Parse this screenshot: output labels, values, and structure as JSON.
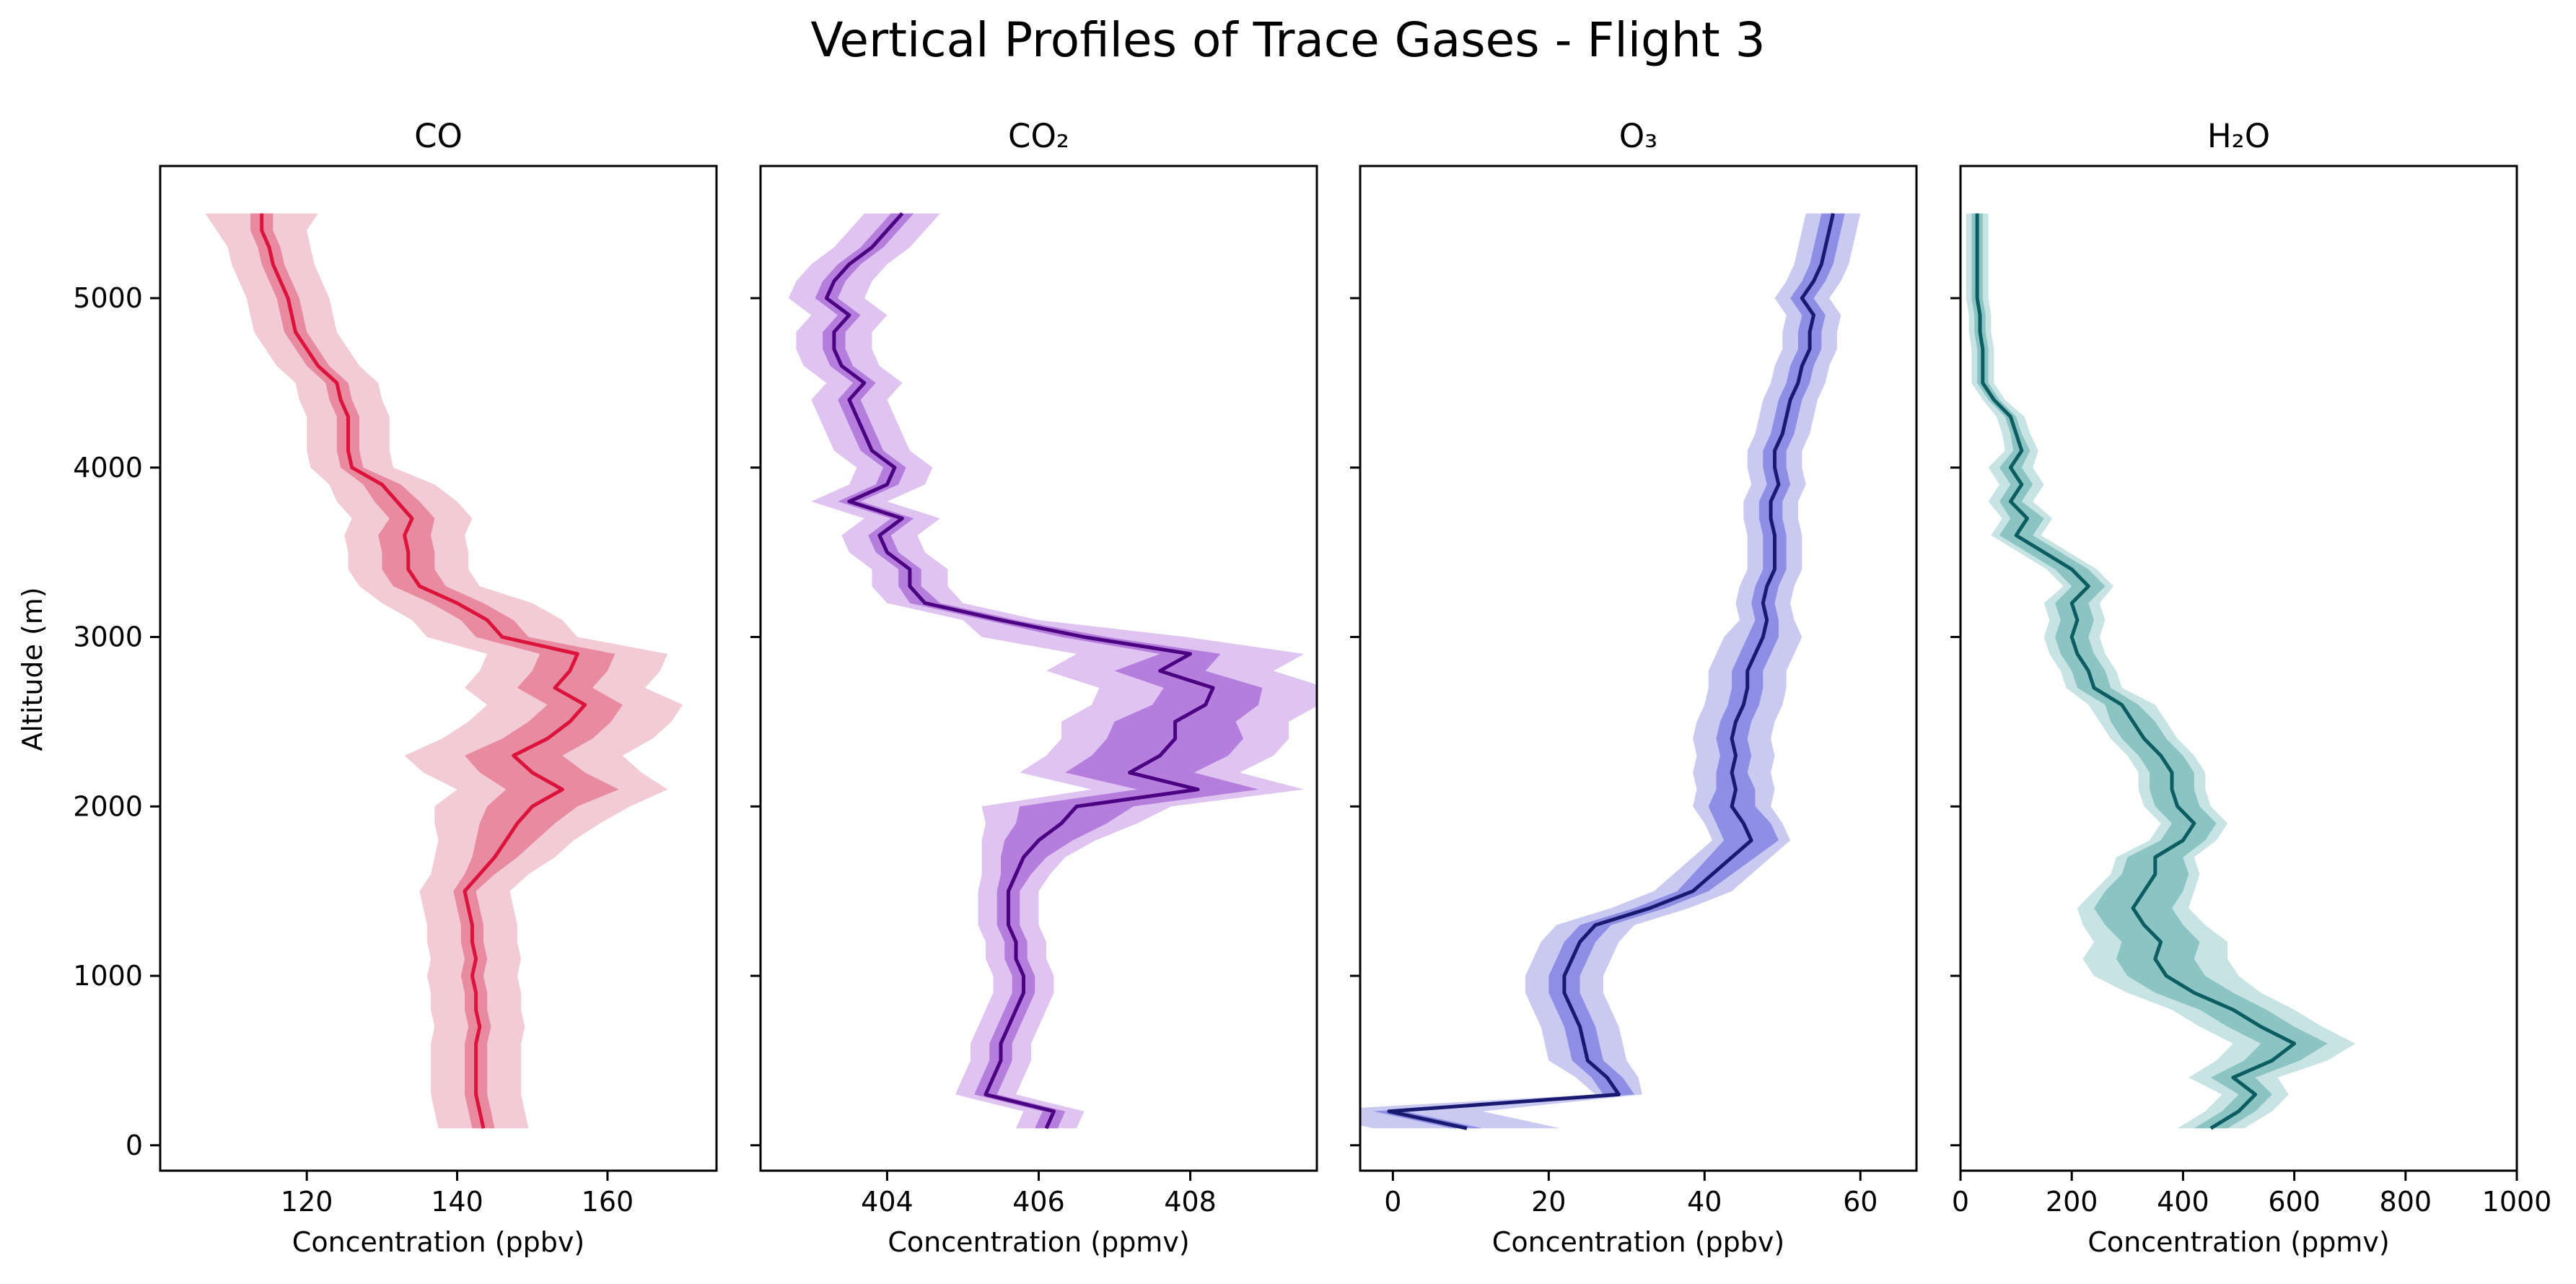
{
  "figure": {
    "title": "Vertical Profiles of Trace Gases - Flight 3",
    "ylabel": "Altitude (m)"
  },
  "chart_data": [
    {
      "type": "line",
      "title": "CO",
      "xlabel": "Concentration (ppbv)",
      "ylabel": "Altitude (m)",
      "xlim": [
        100.5,
        174.5
      ],
      "ylim": [
        -150,
        5780
      ],
      "xticks": [
        120,
        140,
        160
      ],
      "yticks": [
        0,
        1000,
        2000,
        3000,
        4000,
        5000
      ],
      "grid": false,
      "colors": {
        "line": "#dc143c",
        "band_inner": "#e88aa0",
        "band_outer": "#f3cbd6"
      },
      "altitude": [
        100,
        200,
        300,
        400,
        500,
        600,
        700,
        800,
        900,
        1000,
        1100,
        1200,
        1300,
        1400,
        1500,
        1600,
        1700,
        1800,
        1900,
        2000,
        2100,
        2200,
        2300,
        2400,
        2500,
        2600,
        2700,
        2800,
        2900,
        3000,
        3100,
        3200,
        3300,
        3400,
        3500,
        3600,
        3700,
        3800,
        3900,
        4000,
        4100,
        4200,
        4300,
        4400,
        4500,
        4600,
        4700,
        4800,
        4900,
        5000,
        5100,
        5200,
        5300,
        5400,
        5500
      ],
      "mean": [
        143.5,
        143,
        142.5,
        142.5,
        142.5,
        142.5,
        143,
        142.5,
        142.5,
        142,
        142.5,
        142,
        142,
        141.5,
        141,
        143,
        145,
        146.5,
        148,
        150,
        154,
        150,
        147.5,
        152,
        155,
        157,
        153,
        155,
        156,
        146,
        144,
        140,
        135,
        133.5,
        133.5,
        133,
        134,
        132,
        130,
        126,
        125.5,
        125.5,
        125.5,
        124.5,
        124,
        121.5,
        120,
        118.5,
        118,
        117.5,
        116.5,
        115.5,
        115,
        114,
        114
      ],
      "std1": [
        1.5,
        1.5,
        1.5,
        1.5,
        1.5,
        1.5,
        1.5,
        1.5,
        1.5,
        1.5,
        1.5,
        1.5,
        1.5,
        1.5,
        1.5,
        2,
        3,
        4,
        5,
        6,
        7.5,
        7,
        6.5,
        6,
        5.5,
        5,
        5,
        5,
        5,
        3.5,
        3.5,
        3.5,
        3.5,
        3.5,
        3.5,
        3.5,
        3,
        3,
        2.5,
        1.5,
        1.5,
        1.5,
        1.5,
        1.5,
        1.5,
        1.5,
        1.5,
        1.5,
        1.5,
        1.5,
        1.5,
        1.5,
        1.5,
        1.5,
        1.5
      ],
      "std2": [
        6,
        6,
        6,
        6,
        6,
        6,
        6,
        6,
        6,
        6,
        6,
        6,
        6,
        6,
        6,
        6.5,
        8,
        9,
        11,
        13,
        14,
        14.5,
        14.5,
        14,
        13.5,
        13,
        12,
        12,
        12,
        10,
        10,
        10,
        8,
        8,
        8,
        8,
        8,
        8,
        7,
        5.5,
        5.5,
        5.5,
        5.5,
        5.5,
        5.5,
        5.5,
        5.5,
        5.5,
        5.5,
        5.5,
        5.5,
        5.5,
        5.5,
        6,
        7.5
      ]
    },
    {
      "type": "line",
      "title": "CO₂",
      "xlabel": "Concentration (ppmv)",
      "ylabel": "",
      "xlim": [
        402.33,
        409.67
      ],
      "ylim": [
        -150,
        5780
      ],
      "xticks": [
        404,
        406,
        408
      ],
      "yticks": [
        0,
        1000,
        2000,
        3000,
        4000,
        5000
      ],
      "grid": false,
      "colors": {
        "line": "#4b0082",
        "band_inner": "#b57edc",
        "band_outer": "#dfc3f1"
      },
      "altitude": [
        100,
        200,
        300,
        400,
        500,
        600,
        700,
        800,
        900,
        1000,
        1100,
        1200,
        1300,
        1400,
        1500,
        1600,
        1700,
        1800,
        1900,
        2000,
        2100,
        2200,
        2300,
        2400,
        2500,
        2600,
        2700,
        2800,
        2900,
        3000,
        3100,
        3200,
        3300,
        3400,
        3500,
        3600,
        3700,
        3800,
        3900,
        4000,
        4100,
        4200,
        4300,
        4400,
        4500,
        4600,
        4700,
        4800,
        4900,
        5000,
        5100,
        5200,
        5300,
        5400,
        5500
      ],
      "mean": [
        406.1,
        406.2,
        405.3,
        405.4,
        405.5,
        405.5,
        405.6,
        405.7,
        405.8,
        405.8,
        405.7,
        405.7,
        405.6,
        405.6,
        405.6,
        405.7,
        405.8,
        406,
        406.3,
        406.5,
        408.1,
        407.2,
        407.6,
        407.8,
        407.8,
        408.2,
        408.3,
        407.6,
        408,
        406.6,
        405.5,
        404.5,
        404.3,
        404.3,
        404,
        403.9,
        404.2,
        403.5,
        404,
        404.1,
        403.8,
        403.7,
        403.6,
        403.5,
        403.7,
        403.4,
        403.3,
        403.3,
        403.5,
        403.2,
        403.3,
        403.5,
        403.8,
        404,
        404.2
      ],
      "std1": [
        0.15,
        0.15,
        0.15,
        0.15,
        0.15,
        0.15,
        0.15,
        0.15,
        0.15,
        0.15,
        0.15,
        0.15,
        0.15,
        0.15,
        0.15,
        0.2,
        0.3,
        0.45,
        0.6,
        0.75,
        0.8,
        0.85,
        0.9,
        0.9,
        0.8,
        0.7,
        0.65,
        0.6,
        0.4,
        0.3,
        0.2,
        0.2,
        0.15,
        0.15,
        0.15,
        0.15,
        0.15,
        0.15,
        0.15,
        0.15,
        0.15,
        0.15,
        0.15,
        0.15,
        0.15,
        0.15,
        0.15,
        0.15,
        0.15,
        0.15,
        0.15,
        0.15,
        0.15,
        0.15,
        0.15
      ],
      "std2": [
        0.4,
        0.4,
        0.4,
        0.4,
        0.4,
        0.4,
        0.4,
        0.4,
        0.4,
        0.4,
        0.4,
        0.4,
        0.4,
        0.4,
        0.4,
        0.45,
        0.55,
        0.75,
        1,
        1.25,
        1.4,
        1.45,
        1.5,
        1.5,
        1.5,
        1.5,
        1.5,
        1.5,
        1.5,
        1.35,
        0.5,
        0.5,
        0.5,
        0.5,
        0.5,
        0.5,
        0.5,
        0.5,
        0.5,
        0.5,
        0.5,
        0.5,
        0.5,
        0.5,
        0.5,
        0.5,
        0.5,
        0.5,
        0.5,
        0.5,
        0.5,
        0.5,
        0.5,
        0.5,
        0.5
      ]
    },
    {
      "type": "line",
      "title": "O₃",
      "xlabel": "Concentration (ppbv)",
      "ylabel": "",
      "xlim": [
        -4.2,
        67.2
      ],
      "ylim": [
        -150,
        5780
      ],
      "xticks": [
        0,
        20,
        40,
        60
      ],
      "yticks": [
        0,
        1000,
        2000,
        3000,
        4000,
        5000
      ],
      "grid": false,
      "colors": {
        "line": "#191970",
        "band_inner": "#8e8ee5",
        "band_outer": "#c9c9f2"
      },
      "altitude": [
        100,
        200,
        300,
        400,
        500,
        600,
        700,
        800,
        900,
        1000,
        1100,
        1200,
        1300,
        1400,
        1500,
        1600,
        1700,
        1800,
        1900,
        2000,
        2100,
        2200,
        2300,
        2400,
        2500,
        2600,
        2700,
        2800,
        2900,
        3000,
        3100,
        3200,
        3300,
        3400,
        3500,
        3600,
        3700,
        3800,
        3900,
        4000,
        4100,
        4200,
        4300,
        4400,
        4500,
        4600,
        4700,
        4800,
        4900,
        5000,
        5100,
        5200,
        5300,
        5400,
        5500
      ],
      "mean": [
        9.5,
        -0.5,
        29,
        27.5,
        25,
        24.5,
        24,
        23,
        22,
        22,
        23,
        24,
        26,
        33,
        38.5,
        41,
        43.5,
        46,
        45,
        43.5,
        44,
        43.5,
        44,
        43.5,
        44,
        45,
        45.5,
        45.5,
        46.5,
        47.5,
        48,
        47.5,
        48,
        49,
        49,
        49,
        48.5,
        48.5,
        49.5,
        49,
        49,
        50,
        50.5,
        51,
        52,
        52.5,
        53.5,
        53.5,
        54,
        52.5,
        54,
        55,
        55.5,
        56,
        56.5
      ],
      "std1": [
        2,
        2,
        2,
        2,
        2,
        2,
        2,
        2,
        2,
        2,
        2,
        2,
        2,
        2,
        2,
        2.5,
        3,
        3.5,
        3.5,
        3,
        2.5,
        2,
        2,
        2,
        2,
        2,
        2,
        2,
        2,
        2,
        1.5,
        1.5,
        1.5,
        1.5,
        1.5,
        1.5,
        1.5,
        1.5,
        1.5,
        1.5,
        1.5,
        1.5,
        1.5,
        1.5,
        1.5,
        1.5,
        1.5,
        1.5,
        1.5,
        1.5,
        1.5,
        1.5,
        1.5,
        1.5,
        1.5
      ],
      "std2": [
        12,
        12,
        3,
        4,
        5,
        5,
        5,
        5,
        5,
        5,
        5,
        5,
        5,
        5,
        5,
        5,
        5,
        5,
        5,
        5,
        5,
        5,
        5,
        5,
        5,
        5,
        5,
        5,
        5,
        5,
        3.5,
        3.5,
        3.5,
        3.5,
        3.5,
        3.5,
        3.5,
        3.5,
        3.5,
        3.5,
        3.5,
        3.5,
        3.5,
        3.5,
        3.5,
        3.5,
        3.5,
        3.5,
        3.5,
        3.5,
        3.5,
        3.5,
        3.5,
        3.5,
        3.5
      ]
    },
    {
      "type": "line",
      "title": "H₂O",
      "xlabel": "Concentration (ppmv)",
      "ylabel": "",
      "xlim": [
        0,
        1000
      ],
      "ylim": [
        -150,
        5780
      ],
      "xticks": [
        0,
        200,
        400,
        600,
        800,
        1000
      ],
      "yticks": [
        0,
        1000,
        2000,
        3000,
        4000,
        5000
      ],
      "grid": false,
      "colors": {
        "line": "#0b5d62",
        "band_inner": "#8cc4c4",
        "band_outer": "#c8e3e3"
      },
      "altitude": [
        100,
        200,
        300,
        400,
        500,
        600,
        700,
        800,
        900,
        1000,
        1100,
        1200,
        1300,
        1400,
        1500,
        1600,
        1700,
        1800,
        1900,
        2000,
        2100,
        2200,
        2300,
        2400,
        2500,
        2600,
        2700,
        2800,
        2900,
        3000,
        3100,
        3200,
        3300,
        3400,
        3500,
        3600,
        3700,
        3800,
        3900,
        4000,
        4100,
        4200,
        4300,
        4400,
        4500,
        4600,
        4700,
        4800,
        4900,
        5000,
        5100,
        5200,
        5300,
        5400,
        5500
      ],
      "mean": [
        450,
        500,
        530,
        490,
        560,
        600,
        540,
        490,
        420,
        370,
        350,
        360,
        330,
        310,
        330,
        350,
        350,
        400,
        420,
        390,
        380,
        380,
        360,
        330,
        310,
        290,
        240,
        230,
        210,
        200,
        210,
        200,
        230,
        200,
        150,
        100,
        120,
        90,
        110,
        90,
        110,
        100,
        90,
        60,
        40,
        40,
        40,
        35,
        35,
        30,
        30,
        30,
        30,
        30,
        30
      ],
      "std1": [
        30,
        30,
        30,
        40,
        50,
        60,
        60,
        60,
        70,
        70,
        70,
        70,
        70,
        70,
        70,
        60,
        50,
        40,
        40,
        40,
        40,
        40,
        40,
        40,
        40,
        30,
        30,
        30,
        30,
        30,
        30,
        30,
        30,
        30,
        30,
        30,
        30,
        20,
        20,
        20,
        15,
        10,
        10,
        10,
        10,
        10,
        10,
        10,
        10,
        10,
        10,
        10,
        10,
        10,
        10
      ],
      "std2": [
        60,
        60,
        60,
        80,
        100,
        110,
        110,
        110,
        120,
        130,
        130,
        120,
        110,
        100,
        90,
        80,
        70,
        60,
        60,
        60,
        60,
        60,
        60,
        60,
        60,
        60,
        50,
        50,
        50,
        50,
        50,
        50,
        45,
        45,
        45,
        45,
        45,
        40,
        40,
        40,
        30,
        25,
        25,
        20,
        20,
        20,
        20,
        20,
        20,
        20,
        20,
        20,
        20,
        20,
        20
      ]
    }
  ]
}
